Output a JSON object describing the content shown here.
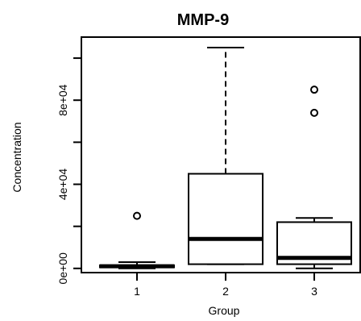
{
  "chart_data": {
    "type": "box",
    "title": "MMP-9",
    "xlabel": "Group",
    "ylabel": "Concentration",
    "ylim": [
      -2000,
      110000
    ],
    "yticks": [
      "0e+00",
      "4e+04",
      "8e+04"
    ],
    "categories": [
      "1",
      "2",
      "3"
    ],
    "boxes": [
      {
        "category": "1",
        "whisker_low": 0,
        "q1": 500,
        "median": 1000,
        "q3": 1500,
        "whisker_high": 3000,
        "outliers": [
          25000
        ]
      },
      {
        "category": "2",
        "whisker_low": 2000,
        "q1": 2000,
        "median": 14000,
        "q3": 45000,
        "whisker_high": 105000,
        "outliers": []
      },
      {
        "category": "3",
        "whisker_low": 0,
        "q1": 2000,
        "median": 5000,
        "q3": 22000,
        "whisker_high": 24000,
        "outliers": [
          74000,
          85000
        ]
      }
    ],
    "grid": false,
    "legend": "none"
  },
  "colors": {
    "stroke": "#000000",
    "box_fill": "#ffffff"
  }
}
